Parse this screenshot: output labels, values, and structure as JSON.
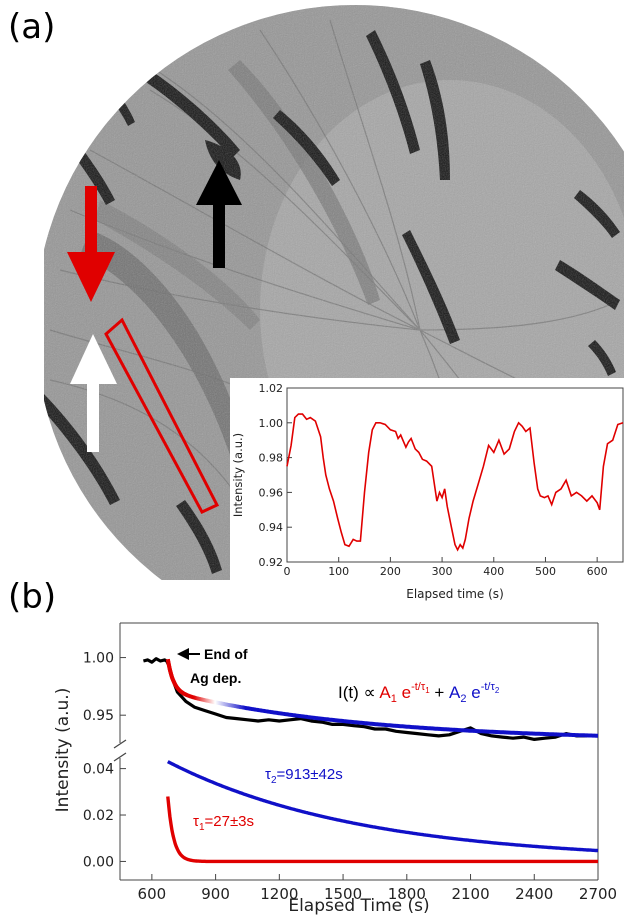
{
  "panel_a": {
    "label": "(a)",
    "image_description_icon": "grayscale-microscopy-image",
    "colors": {
      "background": "#8f8f8f",
      "roi": "#e00000",
      "red_arrow": "#e00000",
      "white_arrow": "#ffffff",
      "black_arrow": "#000000"
    }
  },
  "panel_b": {
    "label": "(b)"
  },
  "chart_data": [
    {
      "id": "inset",
      "type": "line",
      "title": "",
      "xlabel": "Elapsed time (s)",
      "ylabel": "Intensity (a.u.)",
      "xlim": [
        0,
        650
      ],
      "ylim": [
        0.92,
        1.02
      ],
      "xticks": [
        0,
        100,
        200,
        300,
        400,
        500,
        600
      ],
      "xtick_labels": [
        "0",
        "100",
        "200",
        "300",
        "400",
        "500",
        "600"
      ],
      "yticks": [
        0.92,
        0.94,
        0.96,
        0.98,
        1.0,
        1.02
      ],
      "ytick_labels": [
        "0.92",
        "0.94",
        "0.96",
        "0.98",
        "1.00",
        "1.02"
      ],
      "grid": false,
      "series": [
        {
          "color": "#e00000",
          "x": [
            0,
            8,
            15,
            22,
            30,
            38,
            45,
            55,
            65,
            70,
            75,
            82,
            90,
            98,
            105,
            112,
            120,
            128,
            135,
            142,
            150,
            158,
            165,
            172,
            180,
            190,
            200,
            210,
            215,
            220,
            230,
            235,
            240,
            248,
            255,
            262,
            270,
            280,
            290,
            295,
            300,
            305,
            310,
            318,
            325,
            330,
            335,
            340,
            345,
            352,
            360,
            370,
            380,
            390,
            400,
            410,
            420,
            430,
            440,
            448,
            455,
            462,
            470,
            478,
            485,
            490,
            498,
            505,
            512,
            520,
            530,
            540,
            550,
            560,
            570,
            580,
            590,
            600,
            605,
            612,
            620,
            630,
            640,
            650
          ],
          "y": [
            0.975,
            0.987,
            1.003,
            1.005,
            1.005,
            1.002,
            1.003,
            1.001,
            0.992,
            0.98,
            0.97,
            0.962,
            0.955,
            0.945,
            0.937,
            0.93,
            0.929,
            0.933,
            0.932,
            0.932,
            0.96,
            0.983,
            0.996,
            1.0,
            1.0,
            0.999,
            0.996,
            0.995,
            0.991,
            0.993,
            0.986,
            0.989,
            0.991,
            0.985,
            0.983,
            0.979,
            0.978,
            0.975,
            0.955,
            0.96,
            0.957,
            0.962,
            0.952,
            0.94,
            0.93,
            0.927,
            0.93,
            0.928,
            0.933,
            0.945,
            0.955,
            0.965,
            0.975,
            0.987,
            0.983,
            0.99,
            0.982,
            0.985,
            0.995,
            1.0,
            0.998,
            0.995,
            0.997,
            0.977,
            0.962,
            0.958,
            0.957,
            0.958,
            0.953,
            0.96,
            0.962,
            0.967,
            0.958,
            0.96,
            0.958,
            0.955,
            0.958,
            0.954,
            0.95,
            0.975,
            0.988,
            0.99,
            0.999,
            1.0
          ]
        }
      ]
    },
    {
      "id": "main",
      "type": "line",
      "title": "",
      "xlabel": "Elapsed Time (s)",
      "ylabel": "Intensity (a.u.)",
      "xlim": [
        450,
        2700
      ],
      "xticks": [
        600,
        900,
        1200,
        1500,
        1800,
        2100,
        2400,
        2700
      ],
      "xtick_labels": [
        "600",
        "900",
        "1200",
        "1500",
        "1800",
        "2100",
        "2400",
        "2700"
      ],
      "upper_ylim": [
        0.925,
        1.03
      ],
      "upper_yticks": [
        0.95,
        1.0
      ],
      "upper_ytick_labels": [
        "0.95",
        "1.00"
      ],
      "lower_ylim": [
        -0.008,
        0.045
      ],
      "lower_yticks": [
        0.0,
        0.02,
        0.04
      ],
      "lower_ytick_labels": [
        "0.00",
        "0.02",
        "0.04"
      ],
      "broken_axis": true,
      "grid": false,
      "data_series": {
        "color": "#000000",
        "x": [
          560,
          580,
          600,
          620,
          640,
          660,
          670,
          680,
          700,
          720,
          760,
          800,
          850,
          900,
          950,
          1000,
          1050,
          1100,
          1150,
          1200,
          1250,
          1300,
          1350,
          1400,
          1450,
          1500,
          1550,
          1600,
          1650,
          1700,
          1750,
          1800,
          1850,
          1900,
          1950,
          2000,
          2050,
          2100,
          2150,
          2200,
          2250,
          2300,
          2350,
          2400,
          2450,
          2500,
          2550,
          2600,
          2650
        ],
        "y": [
          0.997,
          0.998,
          0.996,
          0.999,
          0.997,
          0.998,
          0.997,
          0.993,
          0.98,
          0.97,
          0.962,
          0.957,
          0.954,
          0.951,
          0.948,
          0.947,
          0.946,
          0.945,
          0.946,
          0.945,
          0.946,
          0.947,
          0.945,
          0.944,
          0.942,
          0.942,
          0.941,
          0.94,
          0.938,
          0.938,
          0.936,
          0.935,
          0.934,
          0.933,
          0.932,
          0.933,
          0.936,
          0.939,
          0.934,
          0.932,
          0.931,
          0.93,
          0.931,
          0.929,
          0.93,
          0.931,
          0.934,
          0.932,
          0.932
        ]
      },
      "fit_formula": {
        "prefix": "I(t) ∝ ",
        "a1": "A",
        "a1_sub": "1",
        "e1": " e",
        "exp1": "-t/τ",
        "exp1_sub": "1",
        "plus": " + ",
        "a2": "A",
        "a2_sub": "2",
        "e2": " e",
        "exp2": "-t/τ",
        "exp2_sub": "2"
      },
      "fit_params": {
        "start_time": 675,
        "offset": 0.9275,
        "A1": 0.028,
        "tau1": 27,
        "A2": 0.043,
        "tau2": 913
      },
      "annotations": {
        "end_dep_line1": "End of",
        "end_dep_line2": "Ag dep.",
        "tau2_label": "τ",
        "tau2_sub": "2",
        "tau2_value": "=913±42s",
        "tau1_label": "τ",
        "tau1_sub": "1",
        "tau1_value": "=27±3s"
      },
      "colors": {
        "fast": "#e00000",
        "slow": "#1010c8",
        "data": "#000000"
      }
    }
  ]
}
